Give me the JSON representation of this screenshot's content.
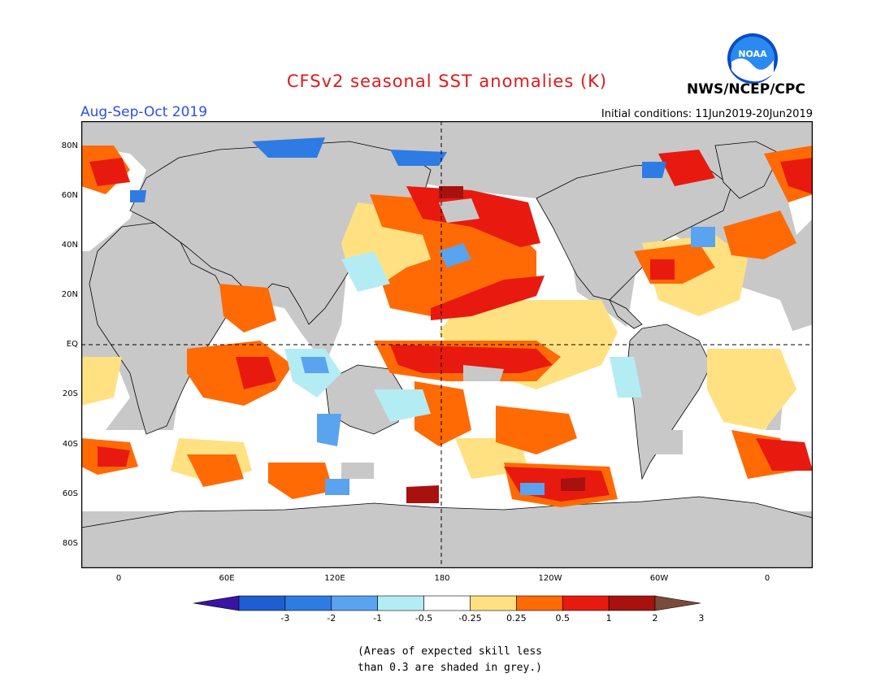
{
  "title": "CFSv2 seasonal SST anomalies (K)",
  "season": "Aug-Sep-Oct 2019",
  "initial_conditions": "Initial conditions: 11Jun2019-20Jun2019",
  "agency": "NWS/NCEP/CPC",
  "logo_text": "NOAA",
  "lat_labels": [
    "80N",
    "60N",
    "40N",
    "20N",
    "EQ",
    "20S",
    "40S",
    "60S",
    "80S"
  ],
  "lon_labels": [
    "0",
    "60E",
    "120E",
    "180",
    "120W",
    "60W",
    "0"
  ],
  "colorbar": {
    "labels": [
      "-3",
      "-2",
      "-1",
      "-0.5",
      "-0.25",
      "0.25",
      "0.5",
      "1",
      "2",
      "3"
    ],
    "colors": [
      "#3a14a3",
      "#1e5ed0",
      "#2e7be4",
      "#5aa3ee",
      "#b4ecf4",
      "#ffffff",
      "#ffe182",
      "#ff6a05",
      "#e81a10",
      "#a8120e",
      "#7a4a3a"
    ]
  },
  "land_color": "#c8c8c8",
  "note_line1": "(Areas of expected skill less",
  "note_line2": "than 0.3 are shaded in grey.)"
}
